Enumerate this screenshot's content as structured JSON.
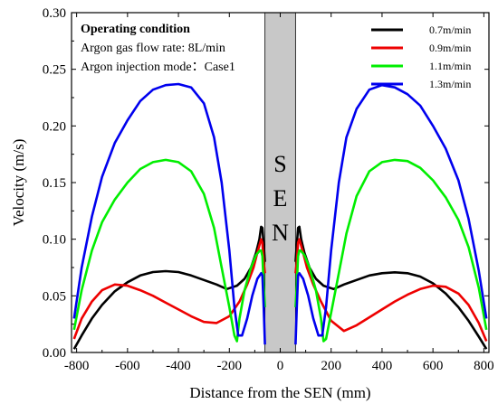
{
  "chart_data": {
    "type": "line",
    "xlabel": "Distance from the SEN (mm)",
    "ylabel": "Velocity (m/s)",
    "xlim": [
      -820,
      820
    ],
    "ylim": [
      0.0,
      0.3
    ],
    "xticks": [
      -800,
      -600,
      -400,
      -200,
      0,
      200,
      400,
      600,
      800
    ],
    "yticks": [
      0.0,
      0.05,
      0.1,
      0.15,
      0.2,
      0.25,
      0.3
    ],
    "xtick_labels": [
      "-800",
      "-600",
      "-400",
      "-200",
      "0",
      "200",
      "400",
      "600",
      "800"
    ],
    "ytick_labels": [
      "0.00",
      "0.05",
      "0.10",
      "0.15",
      "0.20",
      "0.25",
      "0.30"
    ],
    "grid": false,
    "legend_position": "top-right",
    "sen_region": {
      "from": -60,
      "to": 60,
      "label_chars": [
        "S",
        "E",
        "N"
      ],
      "color": "#c8c8c8"
    },
    "annotation": {
      "title": "Operating condition",
      "lines": [
        "Argon gas flow rate: 8L/min",
        "Argon injection mode：Case1"
      ]
    },
    "series": [
      {
        "name": "0.7m/min",
        "color": "#000000",
        "left": [
          [
            -810,
            0.003
          ],
          [
            -780,
            0.015
          ],
          [
            -740,
            0.03
          ],
          [
            -700,
            0.042
          ],
          [
            -650,
            0.054
          ],
          [
            -600,
            0.062
          ],
          [
            -550,
            0.068
          ],
          [
            -500,
            0.071
          ],
          [
            -450,
            0.0718
          ],
          [
            -400,
            0.071
          ],
          [
            -350,
            0.068
          ],
          [
            -300,
            0.064
          ],
          [
            -250,
            0.06
          ],
          [
            -210,
            0.056
          ],
          [
            -170,
            0.059
          ],
          [
            -140,
            0.065
          ],
          [
            -115,
            0.075
          ],
          [
            -95,
            0.088
          ],
          [
            -82,
            0.1
          ],
          [
            -75,
            0.111
          ],
          [
            -70,
            0.11
          ],
          [
            -65,
            0.095
          ],
          [
            -60,
            0.08
          ]
        ],
        "right": [
          [
            60,
            0.08
          ],
          [
            65,
            0.095
          ],
          [
            70,
            0.11
          ],
          [
            75,
            0.111
          ],
          [
            82,
            0.1
          ],
          [
            95,
            0.088
          ],
          [
            115,
            0.075
          ],
          [
            140,
            0.065
          ],
          [
            170,
            0.059
          ],
          [
            210,
            0.056
          ],
          [
            250,
            0.06
          ],
          [
            300,
            0.064
          ],
          [
            350,
            0.068
          ],
          [
            400,
            0.07
          ],
          [
            450,
            0.0708
          ],
          [
            500,
            0.07
          ],
          [
            550,
            0.067
          ],
          [
            600,
            0.061
          ],
          [
            650,
            0.052
          ],
          [
            700,
            0.04
          ],
          [
            740,
            0.028
          ],
          [
            780,
            0.014
          ],
          [
            810,
            0.003
          ]
        ]
      },
      {
        "name": "0.9m/min",
        "color": "#ee0000",
        "left": [
          [
            -810,
            0.012
          ],
          [
            -780,
            0.03
          ],
          [
            -740,
            0.045
          ],
          [
            -700,
            0.055
          ],
          [
            -650,
            0.06
          ],
          [
            -600,
            0.059
          ],
          [
            -550,
            0.055
          ],
          [
            -500,
            0.05
          ],
          [
            -450,
            0.044
          ],
          [
            -400,
            0.038
          ],
          [
            -350,
            0.032
          ],
          [
            -300,
            0.027
          ],
          [
            -250,
            0.026
          ],
          [
            -200,
            0.032
          ],
          [
            -160,
            0.045
          ],
          [
            -130,
            0.06
          ],
          [
            -105,
            0.075
          ],
          [
            -90,
            0.088
          ],
          [
            -80,
            0.096
          ],
          [
            -75,
            0.1
          ],
          [
            -70,
            0.097
          ],
          [
            -65,
            0.08
          ],
          [
            -60,
            0.07
          ]
        ],
        "right": [
          [
            60,
            0.07
          ],
          [
            65,
            0.08
          ],
          [
            70,
            0.097
          ],
          [
            75,
            0.1
          ],
          [
            80,
            0.096
          ],
          [
            90,
            0.088
          ],
          [
            105,
            0.075
          ],
          [
            130,
            0.06
          ],
          [
            160,
            0.045
          ],
          [
            200,
            0.028
          ],
          [
            250,
            0.019
          ],
          [
            300,
            0.024
          ],
          [
            350,
            0.031
          ],
          [
            400,
            0.038
          ],
          [
            450,
            0.045
          ],
          [
            500,
            0.051
          ],
          [
            550,
            0.056
          ],
          [
            600,
            0.059
          ],
          [
            650,
            0.058
          ],
          [
            700,
            0.052
          ],
          [
            740,
            0.042
          ],
          [
            780,
            0.026
          ],
          [
            810,
            0.01
          ]
        ]
      },
      {
        "name": "1.1m/min",
        "color": "#00ee00",
        "left": [
          [
            -810,
            0.02
          ],
          [
            -780,
            0.055
          ],
          [
            -740,
            0.09
          ],
          [
            -700,
            0.115
          ],
          [
            -650,
            0.135
          ],
          [
            -600,
            0.15
          ],
          [
            -550,
            0.162
          ],
          [
            -500,
            0.168
          ],
          [
            -450,
            0.17
          ],
          [
            -400,
            0.168
          ],
          [
            -350,
            0.16
          ],
          [
            -300,
            0.14
          ],
          [
            -260,
            0.11
          ],
          [
            -230,
            0.075
          ],
          [
            -200,
            0.04
          ],
          [
            -180,
            0.015
          ],
          [
            -170,
            0.01
          ],
          [
            -160,
            0.03
          ],
          [
            -140,
            0.055
          ],
          [
            -115,
            0.075
          ],
          [
            -95,
            0.086
          ],
          [
            -80,
            0.09
          ],
          [
            -75,
            0.09
          ],
          [
            -70,
            0.085
          ],
          [
            -65,
            0.06
          ],
          [
            -60,
            0.04
          ]
        ],
        "right": [
          [
            60,
            0.04
          ],
          [
            65,
            0.06
          ],
          [
            70,
            0.085
          ],
          [
            75,
            0.09
          ],
          [
            80,
            0.09
          ],
          [
            95,
            0.086
          ],
          [
            115,
            0.075
          ],
          [
            140,
            0.055
          ],
          [
            160,
            0.03
          ],
          [
            170,
            0.01
          ],
          [
            180,
            0.012
          ],
          [
            200,
            0.035
          ],
          [
            230,
            0.07
          ],
          [
            260,
            0.105
          ],
          [
            300,
            0.138
          ],
          [
            350,
            0.16
          ],
          [
            400,
            0.168
          ],
          [
            450,
            0.17
          ],
          [
            500,
            0.169
          ],
          [
            550,
            0.163
          ],
          [
            600,
            0.152
          ],
          [
            650,
            0.137
          ],
          [
            700,
            0.117
          ],
          [
            740,
            0.093
          ],
          [
            780,
            0.057
          ],
          [
            810,
            0.02
          ]
        ]
      },
      {
        "name": "1.3m/min",
        "color": "#0000ee",
        "left": [
          [
            -810,
            0.03
          ],
          [
            -780,
            0.075
          ],
          [
            -740,
            0.12
          ],
          [
            -700,
            0.155
          ],
          [
            -650,
            0.185
          ],
          [
            -600,
            0.205
          ],
          [
            -550,
            0.222
          ],
          [
            -500,
            0.232
          ],
          [
            -450,
            0.236
          ],
          [
            -400,
            0.237
          ],
          [
            -350,
            0.234
          ],
          [
            -300,
            0.22
          ],
          [
            -260,
            0.19
          ],
          [
            -230,
            0.15
          ],
          [
            -200,
            0.09
          ],
          [
            -180,
            0.04
          ],
          [
            -165,
            0.015
          ],
          [
            -150,
            0.015
          ],
          [
            -130,
            0.03
          ],
          [
            -110,
            0.05
          ],
          [
            -90,
            0.065
          ],
          [
            -75,
            0.07
          ],
          [
            -70,
            0.068
          ],
          [
            -65,
            0.04
          ],
          [
            -60,
            0.007
          ]
        ],
        "right": [
          [
            60,
            0.007
          ],
          [
            65,
            0.04
          ],
          [
            70,
            0.068
          ],
          [
            75,
            0.07
          ],
          [
            90,
            0.065
          ],
          [
            110,
            0.05
          ],
          [
            130,
            0.03
          ],
          [
            150,
            0.015
          ],
          [
            165,
            0.015
          ],
          [
            180,
            0.04
          ],
          [
            200,
            0.09
          ],
          [
            230,
            0.15
          ],
          [
            260,
            0.19
          ],
          [
            300,
            0.215
          ],
          [
            350,
            0.232
          ],
          [
            400,
            0.236
          ],
          [
            450,
            0.234
          ],
          [
            500,
            0.228
          ],
          [
            550,
            0.218
          ],
          [
            600,
            0.2
          ],
          [
            650,
            0.18
          ],
          [
            700,
            0.152
          ],
          [
            740,
            0.118
          ],
          [
            780,
            0.072
          ],
          [
            810,
            0.03
          ]
        ]
      }
    ]
  }
}
